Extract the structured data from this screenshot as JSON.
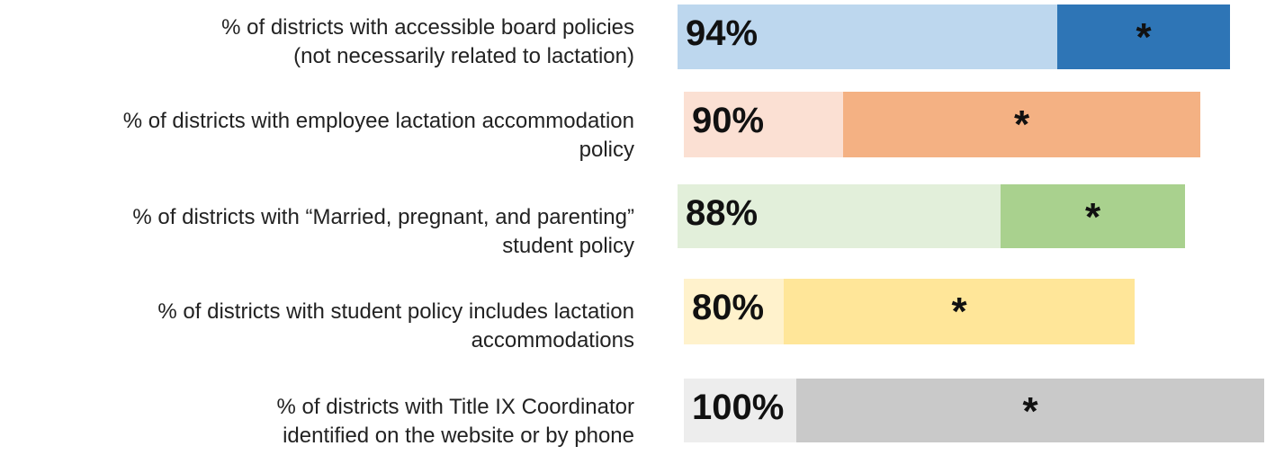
{
  "rows": [
    {
      "label": [
        "% of districts with accessible board policies",
        "(not necessarily related to lactation)"
      ],
      "value": "94%",
      "marker": "*"
    },
    {
      "label": [
        "% of districts with employee lactation accommodation",
        "policy"
      ],
      "value": "90%",
      "marker": "*"
    },
    {
      "label": [
        "% of districts with “Married, pregnant, and parenting”",
        "student policy"
      ],
      "value": "88%",
      "marker": "*"
    },
    {
      "label": [
        "% of districts with student policy includes lactation",
        "accommodations"
      ],
      "value": "80%",
      "marker": "*"
    },
    {
      "label": [
        "% of districts with Title IX Coordinator",
        "identified on the website or by phone"
      ],
      "value": "100%",
      "marker": "*"
    }
  ]
}
